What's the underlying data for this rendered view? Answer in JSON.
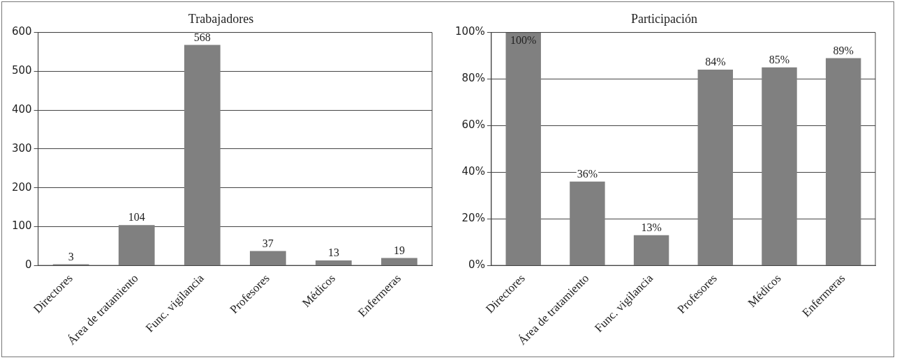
{
  "chart_data": [
    {
      "type": "bar",
      "title": "Trabajadores",
      "categories": [
        "Directores",
        "Área de tratamiento",
        "Func. vigilancia",
        "Profesores",
        "Médicos",
        "Enfermeras"
      ],
      "values": [
        3,
        104,
        568,
        37,
        13,
        19
      ],
      "color": "#808080",
      "ylim": [
        0,
        600
      ],
      "yticks": [
        0,
        100,
        200,
        300,
        400,
        500,
        600
      ],
      "grid": "y",
      "data_labels": true,
      "legend": false
    },
    {
      "type": "bar",
      "title": "Participación",
      "categories": [
        "Directores",
        "Área de tratamiento",
        "Func. vigilancia",
        "Profesores",
        "Médicos",
        "Enfermeras"
      ],
      "values": [
        100,
        36,
        13,
        84,
        85,
        89
      ],
      "value_labels": [
        "100%",
        "36%",
        "13%",
        "84%",
        "85%",
        "89%"
      ],
      "color": "#808080",
      "ylim": [
        0,
        100
      ],
      "yticks": [
        {
          "value": 0,
          "label": "0%"
        },
        {
          "value": 20,
          "label": "20%"
        },
        {
          "value": 40,
          "label": "40%"
        },
        {
          "value": 60,
          "label": "60%"
        },
        {
          "value": 80,
          "label": "80%"
        },
        {
          "value": 100,
          "label": "100%"
        }
      ],
      "grid": "y",
      "legend": false
    }
  ]
}
